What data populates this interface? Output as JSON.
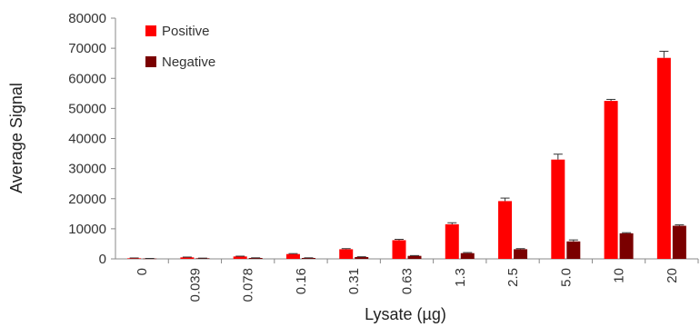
{
  "chart_data": {
    "type": "bar",
    "title": "",
    "xlabel": "Lysate (µg)",
    "ylabel": "Average Signal",
    "ylim": [
      0,
      80000
    ],
    "yticks": [
      "0",
      "10000",
      "20000",
      "30000",
      "40000",
      "50000",
      "60000",
      "70000",
      "80000"
    ],
    "categories": [
      "0",
      "0.039",
      "0.078",
      "0.16",
      "0.31",
      "0.63",
      "1.3",
      "2.5",
      "5.0",
      "10",
      "20"
    ],
    "series": [
      {
        "name": "Positive",
        "color": "#ff0000",
        "values": [
          200,
          500,
          800,
          1600,
          3200,
          6200,
          11500,
          19200,
          33000,
          52500,
          66800
        ],
        "errors": [
          100,
          100,
          100,
          150,
          200,
          300,
          500,
          1000,
          1800,
          500,
          2200
        ]
      },
      {
        "name": "Negative",
        "color": "#7a0000",
        "values": [
          100,
          200,
          300,
          300,
          600,
          1000,
          1900,
          3200,
          5800,
          8500,
          11000
        ],
        "errors": [
          50,
          50,
          50,
          50,
          100,
          100,
          200,
          200,
          500,
          200,
          300
        ]
      }
    ],
    "legend_position": "top-left",
    "grid": false
  }
}
